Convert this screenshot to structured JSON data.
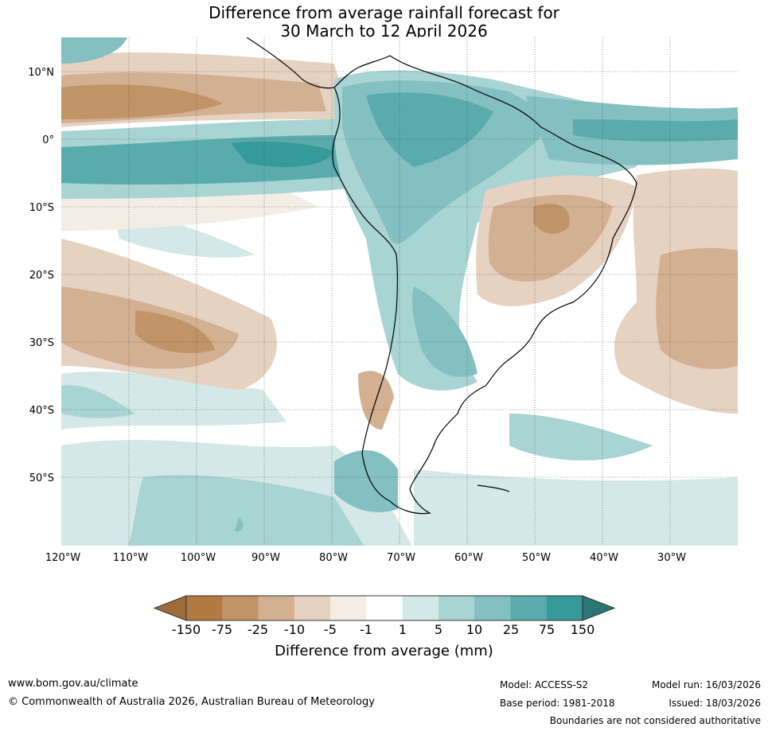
{
  "title": {
    "line1": "Difference from average rainfall forecast for",
    "line2": "30 March to 12 April 2026"
  },
  "map": {
    "lat_labels": [
      "10°N",
      "0°",
      "10°S",
      "20°S",
      "30°S",
      "40°S",
      "50°S"
    ],
    "lon_labels": [
      "120°W",
      "110°W",
      "100°W",
      "90°W",
      "80°W",
      "70°W",
      "60°W",
      "50°W",
      "40°W",
      "30°W"
    ]
  },
  "colorbar": {
    "labels": [
      "-150",
      "-75",
      "-25",
      "-10",
      "-5",
      "-1",
      "1",
      "5",
      "10",
      "25",
      "75",
      "150"
    ],
    "colors": [
      "#9e6a3a",
      "#b07a40",
      "#c19468",
      "#d3b091",
      "#e6d2c1",
      "#f3ede6",
      "#ffffff",
      "#d4e8e7",
      "#a8d4d3",
      "#84c0c1",
      "#5aacac",
      "#36999a",
      "#2b7574"
    ],
    "axis_label": "Difference from average (mm)"
  },
  "footer": {
    "website": "www.bom.gov.au/climate",
    "copyright": "© Commonwealth of Australia 2026, Australian Bureau of Meteorology",
    "model": "Model: ACCESS-S2",
    "base_period": "Base period: 1981-2018",
    "model_run": "Model run: 16/03/2026",
    "issued": "Issued: 18/03/2026",
    "disclaimer": "Boundaries are not considered authoritative"
  }
}
